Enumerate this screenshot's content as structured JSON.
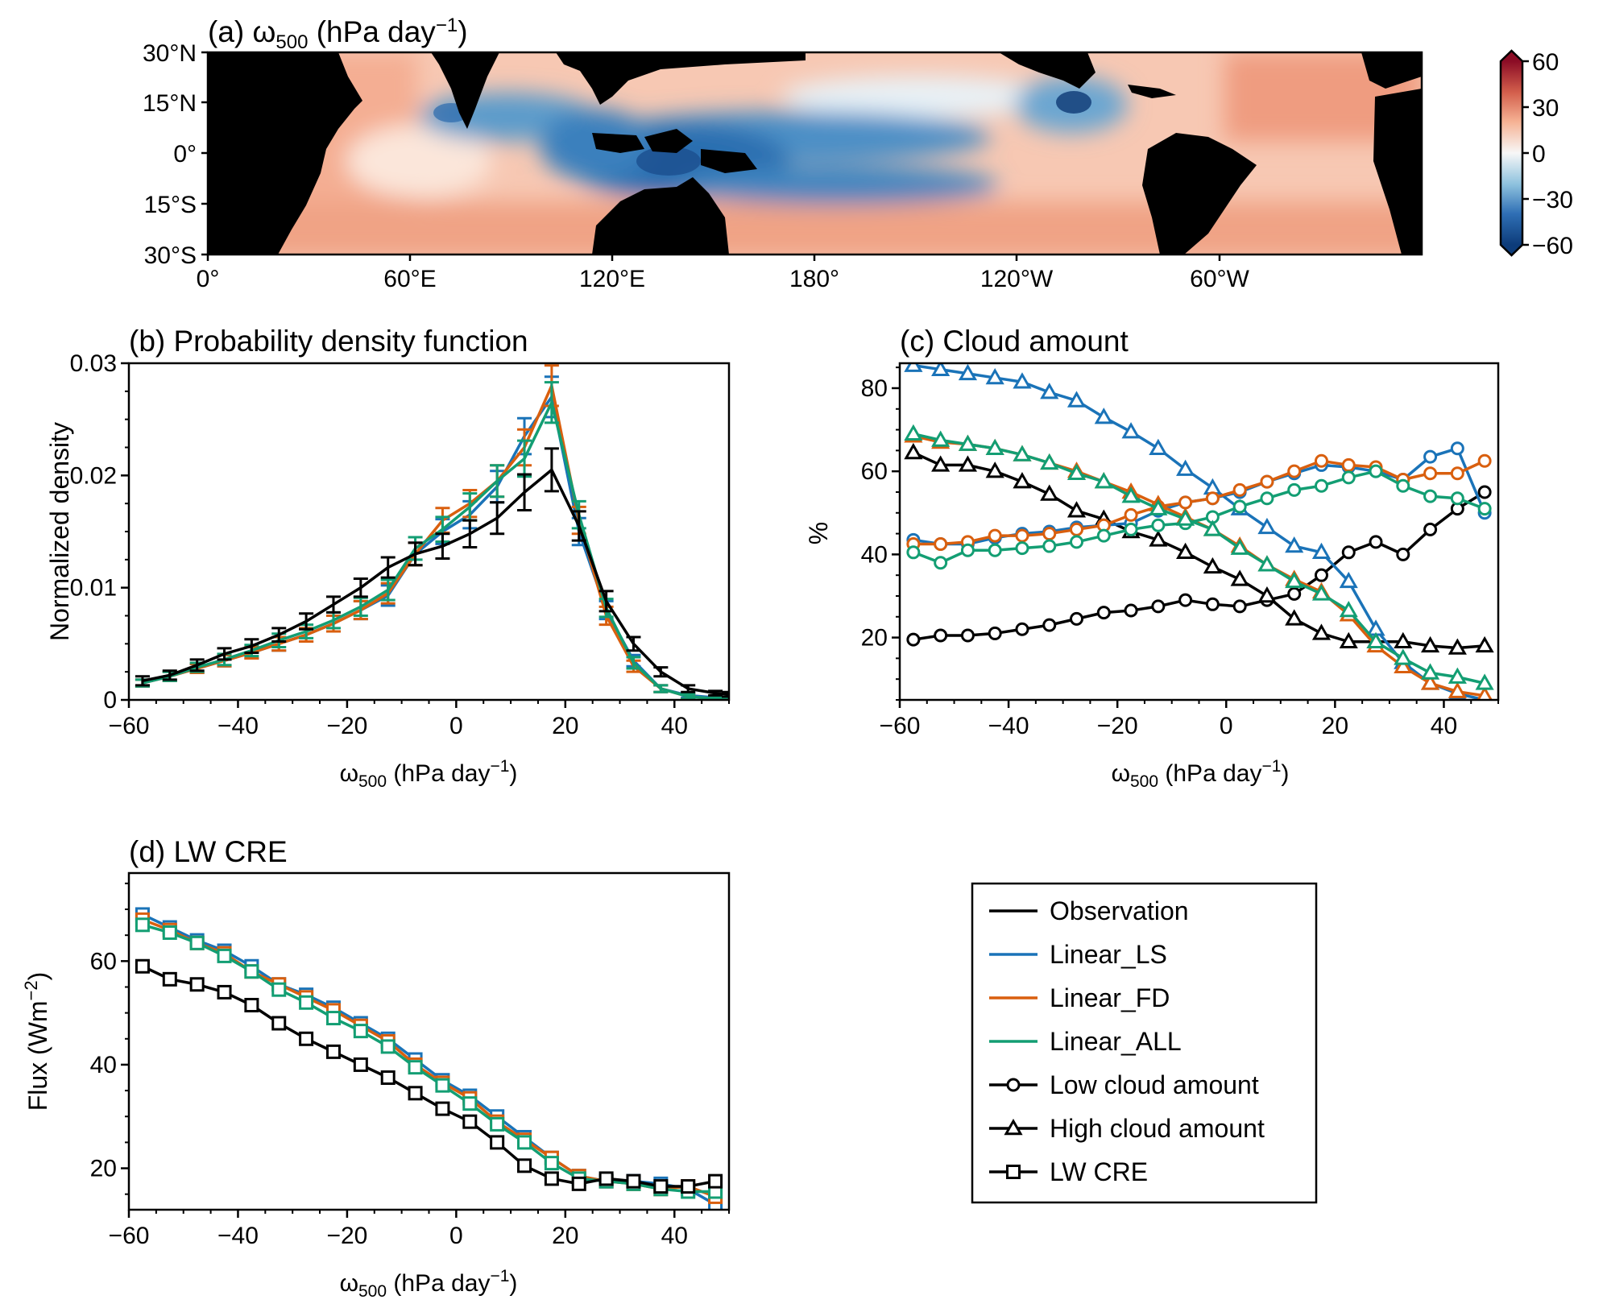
{
  "colors": {
    "Observation": "#000000",
    "Linear_LS": "#1a73b8",
    "Linear_FD": "#d95f0e",
    "Linear_ALL": "#139e73"
  },
  "panel_a": {
    "title": "(a) ω500 (hPa day⁻¹)",
    "yticks": [
      "30°N",
      "15°N",
      "0°",
      "15°S",
      "30°S"
    ],
    "xticks": [
      "0°",
      "60°E",
      "120°E",
      "180°",
      "120°W",
      "60°W"
    ],
    "colorbar_ticks": [
      "60",
      "30",
      "0",
      "−30",
      "−60"
    ],
    "colormap": "RdBu_r"
  },
  "panel_b": {
    "title": "(b) Probability density function"
  },
  "panel_c": {
    "title": "(c) Cloud amount"
  },
  "panel_d": {
    "title": "(d) LW CRE"
  },
  "legend": {
    "items": [
      {
        "label": "Observation",
        "color": "#000000",
        "marker": "none"
      },
      {
        "label": "Linear_LS",
        "color": "#1a73b8",
        "marker": "none"
      },
      {
        "label": "Linear_FD",
        "color": "#d95f0e",
        "marker": "none"
      },
      {
        "label": "Linear_ALL",
        "color": "#139e73",
        "marker": "none"
      },
      {
        "label": "Low cloud amount",
        "color": "#000000",
        "marker": "circle"
      },
      {
        "label": "High cloud amount",
        "color": "#000000",
        "marker": "triangle"
      },
      {
        "label": "LW CRE",
        "color": "#000000",
        "marker": "square"
      }
    ]
  },
  "chart_data": [
    {
      "type": "line",
      "panel": "b",
      "title": "(b) Probability density function",
      "xlabel": "ω500 (hPa day⁻¹)",
      "ylabel": "Normalized density",
      "xlim": [
        -60,
        50
      ],
      "ylim": [
        0,
        0.03
      ],
      "xticks": [
        -60,
        -40,
        -20,
        0,
        20,
        40
      ],
      "xtick_labels": [
        "−60",
        "−40",
        "−20",
        "0",
        "20",
        "40"
      ],
      "yticks": [
        0,
        0.01,
        0.02,
        0.03
      ],
      "ytick_labels": [
        "0",
        "0.01",
        "0.02",
        "0.03"
      ],
      "x": [
        -57.5,
        -52.5,
        -47.5,
        -42.5,
        -37.5,
        -32.5,
        -27.5,
        -22.5,
        -17.5,
        -12.5,
        -7.5,
        -2.5,
        2.5,
        7.5,
        12.5,
        17.5,
        22.5,
        27.5,
        32.5,
        37.5,
        42.5,
        47.5,
        50
      ],
      "series": [
        {
          "name": "Observation",
          "error_bars": true,
          "values": [
            0.0017,
            0.0022,
            0.0031,
            0.0041,
            0.0048,
            0.0058,
            0.007,
            0.0085,
            0.01,
            0.0118,
            0.013,
            0.0137,
            0.0148,
            0.0162,
            0.0185,
            0.0205,
            0.0155,
            0.0088,
            0.005,
            0.0025,
            0.001,
            0.0006,
            0.0005
          ],
          "errors": [
            0.0004,
            0.0004,
            0.0005,
            0.0005,
            0.0006,
            0.0006,
            0.0007,
            0.0007,
            0.0008,
            0.0009,
            0.001,
            0.0011,
            0.0012,
            0.0014,
            0.0016,
            0.0019,
            0.0013,
            0.0009,
            0.0006,
            0.0004,
            0.0003,
            0.0002,
            0.0002
          ]
        },
        {
          "name": "Linear_LS",
          "error_bars": true,
          "values": [
            0.0015,
            0.0021,
            0.0028,
            0.0035,
            0.0042,
            0.005,
            0.0058,
            0.0068,
            0.008,
            0.0093,
            0.013,
            0.015,
            0.0165,
            0.019,
            0.0235,
            0.027,
            0.015,
            0.008,
            0.0035,
            0.001,
            0.0004,
            0.0002,
            0.0001
          ],
          "errors": [
            0.0003,
            0.0004,
            0.0004,
            0.0005,
            0.0005,
            0.0006,
            0.0006,
            0.0007,
            0.0008,
            0.0009,
            0.001,
            0.0011,
            0.0012,
            0.0014,
            0.0016,
            0.0018,
            0.0012,
            0.0008,
            0.0005,
            0.0003,
            0.0002,
            0.0001,
            0.0001
          ]
        },
        {
          "name": "Linear_FD",
          "error_bars": true,
          "values": [
            0.0015,
            0.0021,
            0.0028,
            0.0035,
            0.0042,
            0.005,
            0.0058,
            0.0068,
            0.008,
            0.0095,
            0.013,
            0.016,
            0.0175,
            0.0195,
            0.0225,
            0.028,
            0.016,
            0.0075,
            0.003,
            0.001,
            0.0003,
            0.0001,
            0.0001
          ],
          "errors": [
            0.0003,
            0.0004,
            0.0004,
            0.0005,
            0.0005,
            0.0006,
            0.0006,
            0.0007,
            0.0008,
            0.0009,
            0.001,
            0.0011,
            0.0012,
            0.0014,
            0.0016,
            0.0018,
            0.0012,
            0.0008,
            0.0005,
            0.0003,
            0.0002,
            0.0001,
            0.0001
          ]
        },
        {
          "name": "Linear_ALL",
          "error_bars": true,
          "values": [
            0.0015,
            0.0021,
            0.0029,
            0.0036,
            0.0044,
            0.0053,
            0.0061,
            0.0071,
            0.0083,
            0.0098,
            0.0135,
            0.0152,
            0.0172,
            0.0195,
            0.0215,
            0.0265,
            0.0165,
            0.0082,
            0.0033,
            0.001,
            0.0003,
            0.0001,
            0.0001
          ],
          "errors": [
            0.0003,
            0.0004,
            0.0004,
            0.0005,
            0.0005,
            0.0006,
            0.0006,
            0.0007,
            0.0008,
            0.0009,
            0.001,
            0.0011,
            0.0012,
            0.0014,
            0.0016,
            0.0018,
            0.0012,
            0.0008,
            0.0005,
            0.0003,
            0.0002,
            0.0001,
            0.0001
          ]
        }
      ]
    },
    {
      "type": "line",
      "panel": "c",
      "title": "(c) Cloud amount",
      "xlabel": "ω500 (hPa day⁻¹)",
      "ylabel": "%",
      "xlim": [
        -60,
        50
      ],
      "ylim": [
        5,
        86
      ],
      "xticks": [
        -60,
        -40,
        -20,
        0,
        20,
        40
      ],
      "xtick_labels": [
        "−60",
        "−40",
        "−20",
        "0",
        "20",
        "40"
      ],
      "yticks": [
        20,
        40,
        60,
        80
      ],
      "ytick_labels": [
        "20",
        "40",
        "60",
        "80"
      ],
      "x": [
        -57.5,
        -52.5,
        -47.5,
        -42.5,
        -37.5,
        -32.5,
        -27.5,
        -22.5,
        -17.5,
        -12.5,
        -7.5,
        -2.5,
        2.5,
        7.5,
        12.5,
        17.5,
        22.5,
        27.5,
        32.5,
        37.5,
        42.5,
        47.5
      ],
      "series": [
        {
          "name": "Observation",
          "variable": "Low cloud amount",
          "marker": "circle",
          "values": [
            19.5,
            20.5,
            20.5,
            21,
            22,
            23,
            24.5,
            26,
            26.5,
            27.5,
            29,
            28,
            27.5,
            29,
            30.5,
            35,
            40.5,
            43,
            40,
            46,
            51,
            55
          ]
        },
        {
          "name": "Observation",
          "variable": "High cloud amount",
          "marker": "triangle",
          "values": [
            64.5,
            61.5,
            61.5,
            60,
            57.5,
            54.5,
            50.5,
            48.5,
            45.5,
            43.5,
            40.5,
            37,
            34,
            30,
            24.5,
            21,
            19,
            19,
            19,
            18,
            17.5,
            18
          ]
        },
        {
          "name": "Linear_LS",
          "variable": "Low cloud amount",
          "marker": "circle",
          "values": [
            43.5,
            42.5,
            42.5,
            44,
            45,
            45.5,
            46.5,
            47,
            47.5,
            50.5,
            52.5,
            53.5,
            55,
            57.5,
            59.5,
            61.5,
            61,
            60,
            58,
            63.5,
            65.5,
            50
          ]
        },
        {
          "name": "Linear_LS",
          "variable": "High cloud amount",
          "marker": "triangle",
          "values": [
            85.5,
            84.5,
            83.5,
            82.5,
            81.5,
            79,
            77,
            73,
            69.5,
            65.5,
            60.5,
            56,
            51,
            46.5,
            42,
            40.5,
            33.5,
            22,
            14,
            9,
            6.5,
            5
          ]
        },
        {
          "name": "Linear_FD",
          "variable": "Low cloud amount",
          "marker": "circle",
          "values": [
            42.5,
            42.5,
            43,
            44.5,
            44.5,
            45,
            46,
            47,
            49.5,
            51.5,
            52.5,
            53.5,
            55.5,
            57.5,
            60,
            62.5,
            61.5,
            61,
            58,
            59.5,
            59.5,
            62.5
          ]
        },
        {
          "name": "Linear_FD",
          "variable": "High cloud amount",
          "marker": "triangle",
          "values": [
            68.5,
            67,
            66.5,
            65.5,
            64,
            62,
            60,
            57.5,
            55,
            52,
            49,
            46,
            42,
            37.5,
            34,
            31,
            25.5,
            18,
            13,
            9,
            7,
            6
          ]
        },
        {
          "name": "Linear_ALL",
          "variable": "Low cloud amount",
          "marker": "circle",
          "values": [
            40.5,
            38,
            41,
            41,
            41.5,
            42,
            43,
            44.5,
            46,
            47,
            47.5,
            49,
            51.5,
            53.5,
            55.5,
            56.5,
            58.5,
            60,
            56.5,
            54,
            53.5,
            51
          ]
        },
        {
          "name": "Linear_ALL",
          "variable": "High cloud amount",
          "marker": "triangle",
          "values": [
            69,
            67.5,
            66.5,
            65.5,
            64,
            62,
            59.5,
            57.5,
            54,
            51,
            48.5,
            46,
            41.5,
            37.5,
            33.5,
            30.5,
            26.5,
            19,
            15,
            11.5,
            10.5,
            9
          ]
        }
      ]
    },
    {
      "type": "line",
      "panel": "d",
      "title": "(d) LW CRE",
      "xlabel": "ω500 (hPa day⁻¹)",
      "ylabel": "Flux (Wm⁻²)",
      "xlim": [
        -60,
        50
      ],
      "ylim": [
        12,
        77
      ],
      "xticks": [
        -60,
        -40,
        -20,
        0,
        20,
        40
      ],
      "xtick_labels": [
        "−60",
        "−40",
        "−20",
        "0",
        "20",
        "40"
      ],
      "yticks": [
        20,
        40,
        60
      ],
      "ytick_labels": [
        "20",
        "40",
        "60"
      ],
      "x": [
        -57.5,
        -52.5,
        -47.5,
        -42.5,
        -37.5,
        -32.5,
        -27.5,
        -22.5,
        -17.5,
        -12.5,
        -7.5,
        -2.5,
        2.5,
        7.5,
        12.5,
        17.5,
        22.5,
        27.5,
        32.5,
        37.5,
        42.5,
        47.5
      ],
      "series": [
        {
          "name": "Observation",
          "variable": "LW CRE",
          "marker": "square",
          "values": [
            59,
            56.5,
            55.5,
            54,
            51.5,
            48,
            45,
            42.5,
            40,
            37.5,
            34.5,
            31.5,
            29,
            25,
            20.5,
            18,
            17,
            18,
            17.5,
            16.5,
            16.5,
            17.5
          ]
        },
        {
          "name": "Linear_LS",
          "variable": "LW CRE",
          "marker": "square",
          "values": [
            69,
            66.5,
            64,
            62,
            59,
            55.5,
            53.5,
            51,
            48,
            45,
            41,
            37,
            34,
            30,
            26,
            22,
            18.5,
            17.5,
            17.5,
            17,
            16,
            13
          ]
        },
        {
          "name": "Linear_FD",
          "variable": "LW CRE",
          "marker": "square",
          "values": [
            68,
            66,
            63.5,
            61.5,
            58,
            55.5,
            53,
            50.5,
            47.5,
            44.5,
            40,
            36.5,
            33.5,
            29,
            25.5,
            22,
            18.5,
            17.5,
            17,
            16,
            16.5,
            14.5
          ]
        },
        {
          "name": "Linear_ALL",
          "variable": "LW CRE",
          "marker": "square",
          "values": [
            67,
            65.5,
            63.5,
            61,
            58,
            54.5,
            52,
            49,
            46.5,
            43.5,
            39.5,
            36,
            32.5,
            28.5,
            25,
            21,
            18,
            17.5,
            17,
            16,
            15.5,
            15.5
          ]
        }
      ]
    }
  ]
}
